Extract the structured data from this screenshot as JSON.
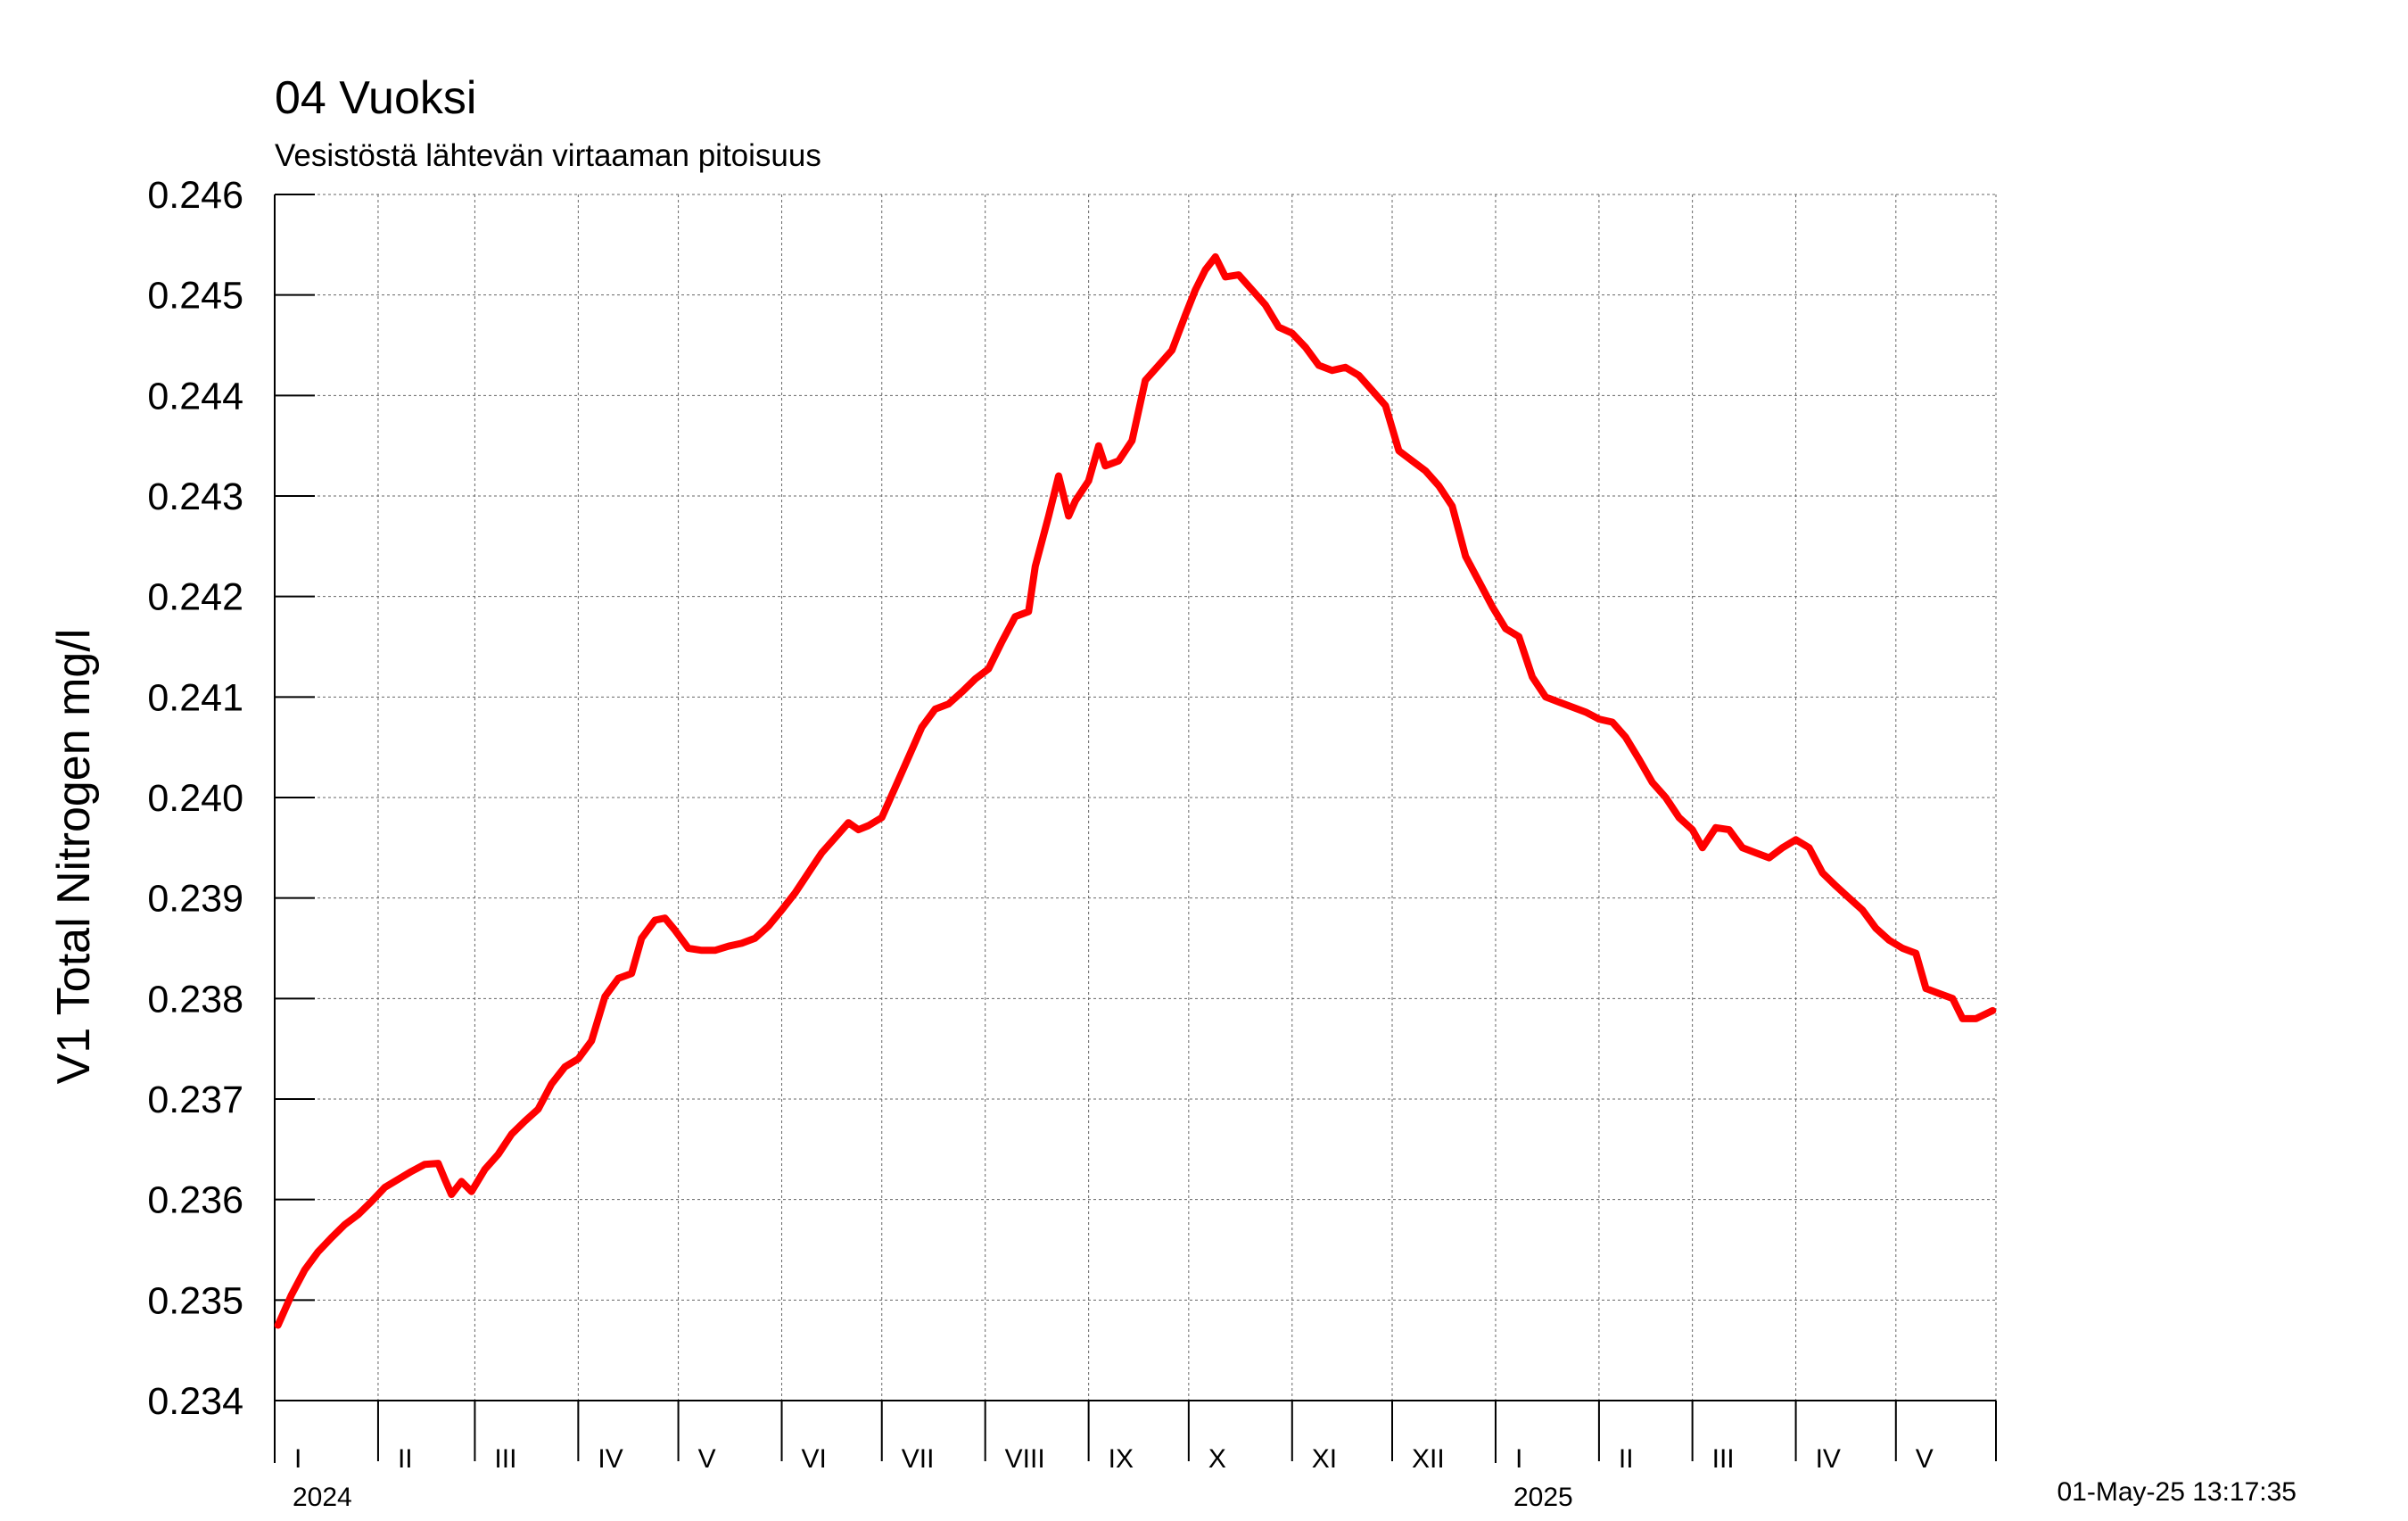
{
  "chart_data": {
    "type": "line",
    "title": "04 Vuoksi",
    "subtitle": "Vesistöstä lähtevän virtaaman pitoisuus",
    "ylabel": "V1 Total Nitrogen mg/l",
    "xlabel": "",
    "ylim": [
      0.234,
      0.246
    ],
    "y_ticks": [
      "0.234",
      "0.235",
      "0.236",
      "0.237",
      "0.238",
      "0.239",
      "0.240",
      "0.241",
      "0.242",
      "0.243",
      "0.244",
      "0.245",
      "0.246"
    ],
    "xlim": [
      "2024-01-01",
      "2025-05-31"
    ],
    "month_ticks": [
      {
        "label": "I",
        "date": "2024-01-01"
      },
      {
        "label": "II",
        "date": "2024-02-01"
      },
      {
        "label": "III",
        "date": "2024-03-01"
      },
      {
        "label": "IV",
        "date": "2024-04-01"
      },
      {
        "label": "V",
        "date": "2024-05-01"
      },
      {
        "label": "VI",
        "date": "2024-06-01"
      },
      {
        "label": "VII",
        "date": "2024-07-01"
      },
      {
        "label": "VIII",
        "date": "2024-08-01"
      },
      {
        "label": "IX",
        "date": "2024-09-01"
      },
      {
        "label": "X",
        "date": "2024-10-01"
      },
      {
        "label": "XI",
        "date": "2024-11-01"
      },
      {
        "label": "XII",
        "date": "2024-12-01"
      },
      {
        "label": "I",
        "date": "2025-01-01"
      },
      {
        "label": "II",
        "date": "2025-02-01"
      },
      {
        "label": "III",
        "date": "2025-03-01"
      },
      {
        "label": "IV",
        "date": "2025-04-01"
      },
      {
        "label": "V",
        "date": "2025-05-01"
      }
    ],
    "years": [
      {
        "label": "2024",
        "date": "2024-01-01"
      },
      {
        "label": "2025",
        "date": "2025-01-01"
      }
    ],
    "grid": true,
    "series": [
      {
        "color": "#ff0000",
        "points": [
          [
            "2024-01-02",
            0.23475
          ],
          [
            "2024-01-06",
            0.23505
          ],
          [
            "2024-01-10",
            0.2353
          ],
          [
            "2024-01-14",
            0.23548
          ],
          [
            "2024-01-18",
            0.23562
          ],
          [
            "2024-01-22",
            0.23575
          ],
          [
            "2024-01-26",
            0.23585
          ],
          [
            "2024-01-30",
            0.23598
          ],
          [
            "2024-02-03",
            0.23612
          ],
          [
            "2024-02-07",
            0.2362
          ],
          [
            "2024-02-11",
            0.23628
          ],
          [
            "2024-02-15",
            0.23635
          ],
          [
            "2024-02-19",
            0.23636
          ],
          [
            "2024-02-21",
            0.2362
          ],
          [
            "2024-02-23",
            0.23605
          ],
          [
            "2024-02-26",
            0.23618
          ],
          [
            "2024-02-29",
            0.23608
          ],
          [
            "2024-03-04",
            0.2363
          ],
          [
            "2024-03-08",
            0.23645
          ],
          [
            "2024-03-12",
            0.23665
          ],
          [
            "2024-03-16",
            0.23678
          ],
          [
            "2024-03-20",
            0.2369
          ],
          [
            "2024-03-24",
            0.23715
          ],
          [
            "2024-03-28",
            0.23732
          ],
          [
            "2024-04-01",
            0.2374
          ],
          [
            "2024-04-05",
            0.23758
          ],
          [
            "2024-04-09",
            0.23802
          ],
          [
            "2024-04-13",
            0.2382
          ],
          [
            "2024-04-17",
            0.23825
          ],
          [
            "2024-04-20",
            0.2386
          ],
          [
            "2024-04-24",
            0.23878
          ],
          [
            "2024-04-27",
            0.2388
          ],
          [
            "2024-04-30",
            0.23868
          ],
          [
            "2024-05-04",
            0.2385
          ],
          [
            "2024-05-08",
            0.23848
          ],
          [
            "2024-05-12",
            0.23848
          ],
          [
            "2024-05-16",
            0.23852
          ],
          [
            "2024-05-20",
            0.23855
          ],
          [
            "2024-05-24",
            0.2386
          ],
          [
            "2024-05-28",
            0.23872
          ],
          [
            "2024-06-01",
            0.23888
          ],
          [
            "2024-06-05",
            0.23905
          ],
          [
            "2024-06-09",
            0.23925
          ],
          [
            "2024-06-13",
            0.23945
          ],
          [
            "2024-06-17",
            0.2396
          ],
          [
            "2024-06-21",
            0.23975
          ],
          [
            "2024-06-24",
            0.23968
          ],
          [
            "2024-06-27",
            0.23972
          ],
          [
            "2024-07-01",
            0.2398
          ],
          [
            "2024-07-05",
            0.2401
          ],
          [
            "2024-07-09",
            0.2404
          ],
          [
            "2024-07-13",
            0.2407
          ],
          [
            "2024-07-17",
            0.24088
          ],
          [
            "2024-07-21",
            0.24093
          ],
          [
            "2024-07-25",
            0.24105
          ],
          [
            "2024-07-29",
            0.24118
          ],
          [
            "2024-08-02",
            0.24128
          ],
          [
            "2024-08-06",
            0.24155
          ],
          [
            "2024-08-10",
            0.2418
          ],
          [
            "2024-08-14",
            0.24185
          ],
          [
            "2024-08-16",
            0.2423
          ],
          [
            "2024-08-20",
            0.2428
          ],
          [
            "2024-08-23",
            0.2432
          ],
          [
            "2024-08-26",
            0.2428
          ],
          [
            "2024-08-28",
            0.24295
          ],
          [
            "2024-09-01",
            0.24315
          ],
          [
            "2024-09-04",
            0.2435
          ],
          [
            "2024-09-06",
            0.2433
          ],
          [
            "2024-09-10",
            0.24335
          ],
          [
            "2024-09-14",
            0.24355
          ],
          [
            "2024-09-18",
            0.24415
          ],
          [
            "2024-09-22",
            0.2443
          ],
          [
            "2024-09-26",
            0.24445
          ],
          [
            "2024-09-30",
            0.2448
          ],
          [
            "2024-10-03",
            0.24505
          ],
          [
            "2024-10-06",
            0.24525
          ],
          [
            "2024-10-09",
            0.24538
          ],
          [
            "2024-10-12",
            0.24518
          ],
          [
            "2024-10-16",
            0.2452
          ],
          [
            "2024-10-20",
            0.24505
          ],
          [
            "2024-10-24",
            0.2449
          ],
          [
            "2024-10-28",
            0.24468
          ],
          [
            "2024-11-01",
            0.24462
          ],
          [
            "2024-11-05",
            0.24448
          ],
          [
            "2024-11-09",
            0.2443
          ],
          [
            "2024-11-13",
            0.24425
          ],
          [
            "2024-11-17",
            0.24428
          ],
          [
            "2024-11-21",
            0.2442
          ],
          [
            "2024-11-25",
            0.24405
          ],
          [
            "2024-11-29",
            0.2439
          ],
          [
            "2024-12-03",
            0.24345
          ],
          [
            "2024-12-07",
            0.24335
          ],
          [
            "2024-12-11",
            0.24325
          ],
          [
            "2024-12-15",
            0.2431
          ],
          [
            "2024-12-19",
            0.2429
          ],
          [
            "2024-12-23",
            0.2424
          ],
          [
            "2024-12-27",
            0.24215
          ],
          [
            "2024-12-31",
            0.2419
          ],
          [
            "2025-01-04",
            0.24168
          ],
          [
            "2025-01-08",
            0.2416
          ],
          [
            "2025-01-12",
            0.2412
          ],
          [
            "2025-01-16",
            0.241
          ],
          [
            "2025-01-20",
            0.24095
          ],
          [
            "2025-01-24",
            0.2409
          ],
          [
            "2025-01-28",
            0.24085
          ],
          [
            "2025-02-01",
            0.24078
          ],
          [
            "2025-02-05",
            0.24075
          ],
          [
            "2025-02-09",
            0.2406
          ],
          [
            "2025-02-13",
            0.24038
          ],
          [
            "2025-02-17",
            0.24015
          ],
          [
            "2025-02-21",
            0.24
          ],
          [
            "2025-02-25",
            0.2398
          ],
          [
            "2025-03-01",
            0.23968
          ],
          [
            "2025-03-04",
            0.2395
          ],
          [
            "2025-03-08",
            0.2397
          ],
          [
            "2025-03-12",
            0.23968
          ],
          [
            "2025-03-16",
            0.2395
          ],
          [
            "2025-03-20",
            0.23945
          ],
          [
            "2025-03-24",
            0.2394
          ],
          [
            "2025-03-28",
            0.2395
          ],
          [
            "2025-04-01",
            0.23958
          ],
          [
            "2025-04-05",
            0.2395
          ],
          [
            "2025-04-09",
            0.23925
          ],
          [
            "2025-04-13",
            0.23912
          ],
          [
            "2025-04-17",
            0.239
          ],
          [
            "2025-04-21",
            0.23888
          ],
          [
            "2025-04-25",
            0.2387
          ],
          [
            "2025-04-29",
            0.23858
          ],
          [
            "2025-05-03",
            0.2385
          ],
          [
            "2025-05-07",
            0.23845
          ],
          [
            "2025-05-10",
            0.2381
          ],
          [
            "2025-05-14",
            0.23805
          ],
          [
            "2025-05-18",
            0.238
          ],
          [
            "2025-05-21",
            0.2378
          ],
          [
            "2025-05-25",
            0.2378
          ],
          [
            "2025-05-30",
            0.23788
          ]
        ]
      }
    ],
    "timestamp": "01-May-25 13:17:35"
  }
}
